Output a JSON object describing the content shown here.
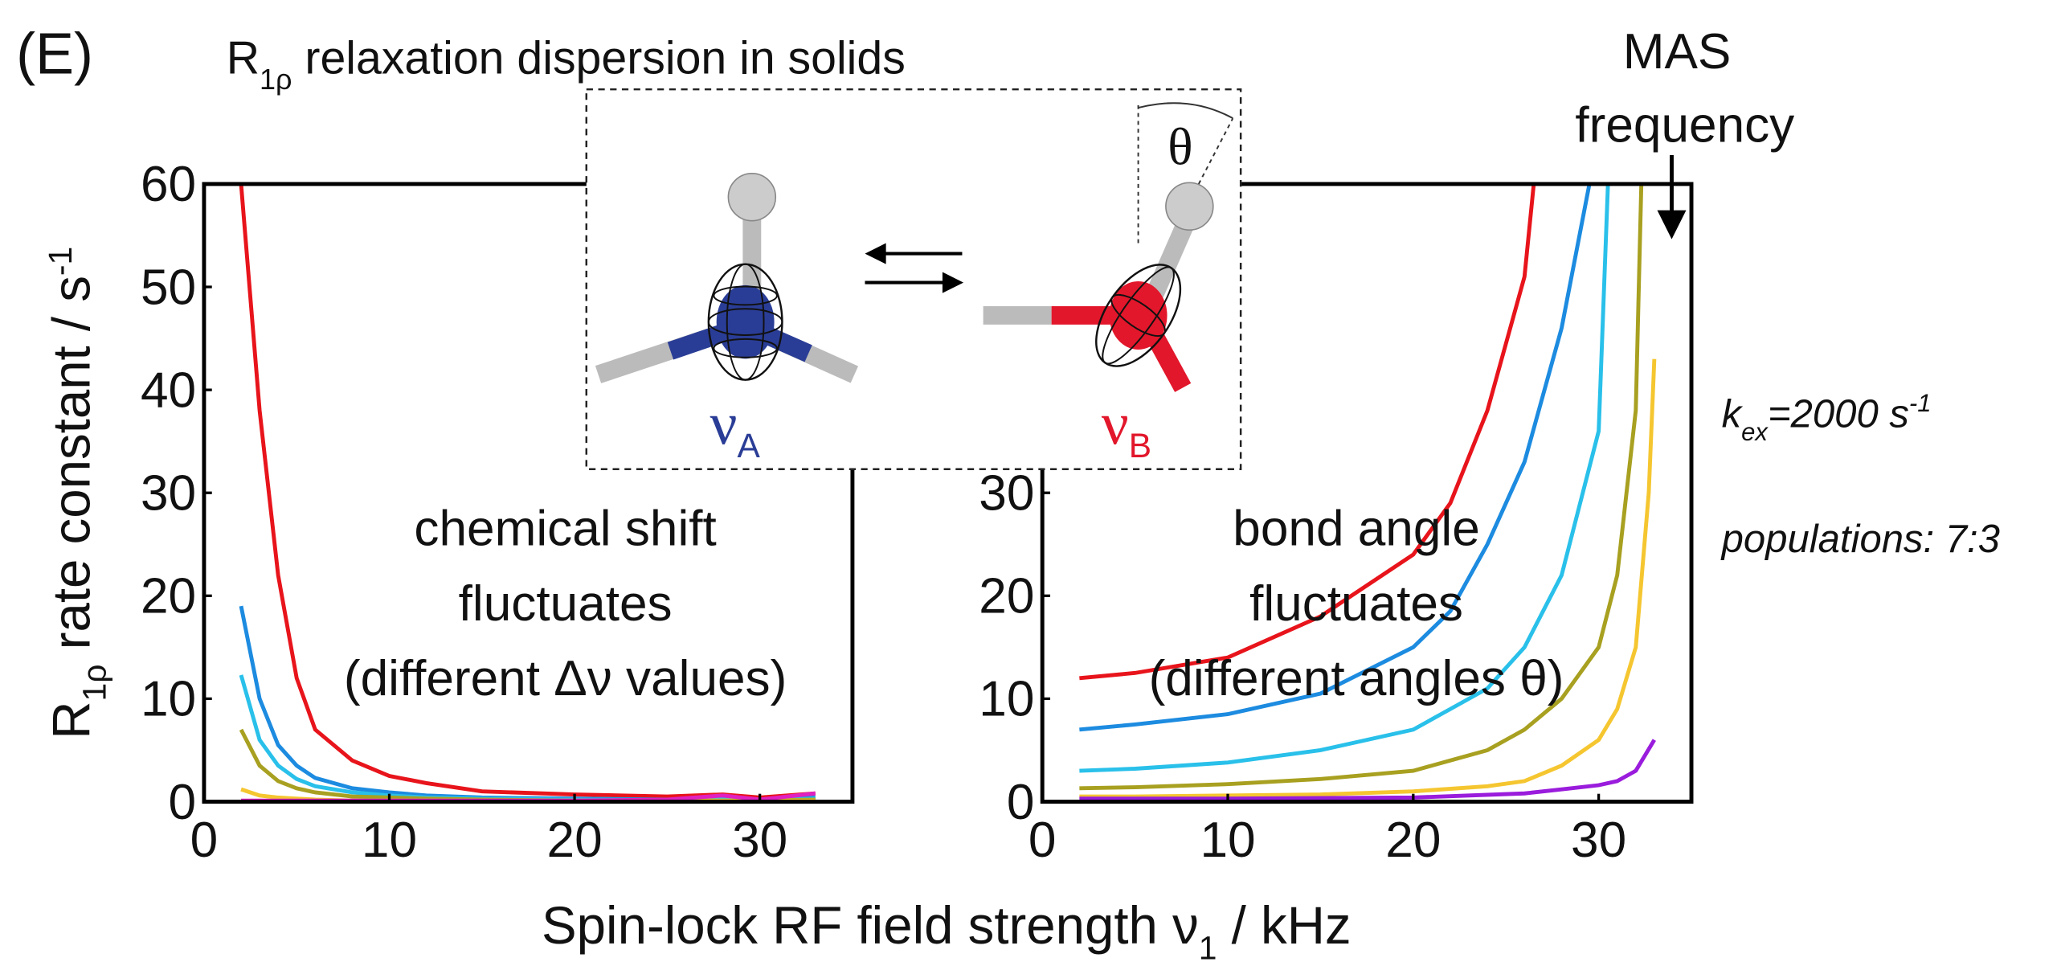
{
  "panel_label": "(E)",
  "title": [
    "R",
    "1ρ",
    " relaxation dispersion in solids"
  ],
  "y_label": [
    "R",
    "1ρ",
    " rate constant / s",
    "-1"
  ],
  "x_label": [
    "Spin-lock RF field strength ν",
    "1",
    " / kHz"
  ],
  "mas_label": [
    "MAS",
    "frequency"
  ],
  "kex_label": [
    "k",
    "ex",
    "=2000 s",
    "-1"
  ],
  "populations_label": "populations: 7:3",
  "inset": {
    "state_a": [
      "ν",
      "A"
    ],
    "state_b": [
      "ν",
      "B"
    ],
    "angle": "θ"
  },
  "chart_data": [
    {
      "type": "line",
      "annotation": [
        "chemical shift",
        "fluctuates",
        "(different Δν values)"
      ],
      "xlim": [
        0,
        35
      ],
      "ylim": [
        0,
        60
      ],
      "xticks": [
        0,
        10,
        20,
        30
      ],
      "yticks": [
        0,
        10,
        20,
        30,
        40,
        50,
        60
      ],
      "series": [
        {
          "color": "#e8141b",
          "x": [
            2,
            3,
            4,
            5,
            6,
            8,
            10,
            12,
            15,
            20,
            25,
            28,
            30,
            33
          ],
          "values": [
            60,
            38,
            22,
            12,
            7,
            4,
            2.5,
            1.8,
            1,
            0.7,
            0.5,
            0.7,
            0.4,
            0.8
          ]
        },
        {
          "color": "#1c8be0",
          "x": [
            2,
            3,
            4,
            5,
            6,
            8,
            10,
            12,
            15,
            20,
            25,
            28,
            30,
            33
          ],
          "values": [
            19,
            10,
            5.5,
            3.5,
            2.3,
            1.3,
            0.9,
            0.6,
            0.4,
            0.3,
            0.2,
            0.3,
            0.2,
            0.4
          ]
        },
        {
          "color": "#29c0ea",
          "x": [
            2,
            3,
            4,
            5,
            6,
            8,
            10,
            12,
            15,
            20,
            25,
            28,
            30,
            33
          ],
          "values": [
            12.3,
            6,
            3.5,
            2.2,
            1.5,
            0.9,
            0.6,
            0.4,
            0.3,
            0.2,
            0.15,
            0.2,
            0.1,
            0.3
          ]
        },
        {
          "color": "#a8a020",
          "x": [
            2,
            3,
            4,
            5,
            6,
            8,
            10,
            12,
            15,
            20,
            25,
            28,
            30,
            33
          ],
          "values": [
            7,
            3.5,
            2,
            1.3,
            0.9,
            0.5,
            0.4,
            0.3,
            0.2,
            0.1,
            0.1,
            0.1,
            0.1,
            0.2
          ]
        },
        {
          "color": "#f5c630",
          "x": [
            2,
            3,
            4,
            5,
            6,
            8,
            10,
            12,
            15,
            20,
            25,
            28,
            30,
            33
          ],
          "values": [
            1.2,
            0.6,
            0.4,
            0.3,
            0.2,
            0.1,
            0.1,
            0.1,
            0.1,
            0.1,
            0.1,
            0.1,
            0.1,
            0.1
          ]
        },
        {
          "color": "#e020c0",
          "x": [
            2,
            5,
            10,
            15,
            20,
            25,
            28,
            30,
            33
          ],
          "values": [
            0.1,
            0.1,
            0.1,
            0.1,
            0.1,
            0.2,
            0.6,
            0.2,
            0.8
          ]
        }
      ]
    },
    {
      "type": "line",
      "annotation": [
        "bond angle",
        "fluctuates",
        "(different angles θ)"
      ],
      "xlim": [
        0,
        35
      ],
      "ylim": [
        0,
        60
      ],
      "xticks": [
        0,
        10,
        20,
        30
      ],
      "yticks": [
        0,
        10,
        20,
        30
      ],
      "series": [
        {
          "color": "#e8141b",
          "x": [
            2,
            5,
            10,
            15,
            20,
            22,
            24,
            26,
            26.5
          ],
          "values": [
            12,
            12.5,
            14,
            18,
            24,
            29,
            38,
            51,
            60
          ]
        },
        {
          "color": "#1c8be0",
          "x": [
            2,
            5,
            10,
            15,
            20,
            22,
            24,
            26,
            28,
            29.5
          ],
          "values": [
            7,
            7.5,
            8.5,
            10.5,
            15,
            18.5,
            25,
            33,
            46,
            60
          ]
        },
        {
          "color": "#29c0ea",
          "x": [
            2,
            5,
            10,
            15,
            20,
            22,
            24,
            26,
            28,
            30,
            30.5
          ],
          "values": [
            3,
            3.2,
            3.8,
            5,
            7,
            9,
            11,
            15,
            22,
            36,
            60
          ]
        },
        {
          "color": "#a8a020",
          "x": [
            2,
            5,
            10,
            15,
            20,
            22,
            24,
            26,
            28,
            30,
            31,
            32,
            32.3
          ],
          "values": [
            1.3,
            1.4,
            1.7,
            2.2,
            3,
            4,
            5,
            7,
            10,
            15,
            22,
            38,
            60
          ]
        },
        {
          "color": "#f5c630",
          "x": [
            2,
            5,
            10,
            15,
            20,
            24,
            26,
            28,
            30,
            31,
            32,
            32.7,
            33
          ],
          "values": [
            0.5,
            0.5,
            0.6,
            0.7,
            1,
            1.5,
            2,
            3.5,
            6,
            9,
            15,
            30,
            43
          ]
        },
        {
          "color": "#9a1cdc",
          "x": [
            2,
            10,
            20,
            26,
            28,
            30,
            31,
            32,
            33
          ],
          "values": [
            0.3,
            0.3,
            0.4,
            0.8,
            1.2,
            1.6,
            2,
            3,
            6
          ]
        }
      ]
    }
  ]
}
